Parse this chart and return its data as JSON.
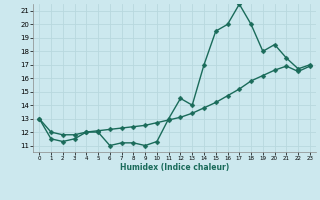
{
  "xlabel": "Humidex (Indice chaleur)",
  "background_color": "#cce8ee",
  "grid_color": "#b8d8de",
  "line_color": "#1a6b5a",
  "line1_x": [
    0,
    1,
    2,
    3,
    4,
    5,
    6,
    7,
    8,
    9,
    10,
    11,
    12,
    13,
    14,
    15,
    16,
    17,
    18,
    19,
    20,
    21,
    22,
    23
  ],
  "line1_y": [
    13,
    11.5,
    11.3,
    11.5,
    12,
    12,
    11,
    11.2,
    11.2,
    11,
    11.3,
    13,
    14.5,
    14,
    17,
    19.5,
    20,
    21.5,
    20,
    18,
    18.5,
    17.5,
    16.7,
    17
  ],
  "line2_x": [
    0,
    1,
    2,
    3,
    4,
    5,
    6,
    7,
    8,
    9,
    10,
    11,
    12,
    13,
    14,
    15,
    16,
    17,
    18,
    19,
    20,
    21,
    22,
    23
  ],
  "line2_y": [
    13,
    12,
    11.8,
    11.8,
    12,
    12.1,
    12.2,
    12.3,
    12.4,
    12.5,
    12.7,
    12.9,
    13.1,
    13.4,
    13.8,
    14.2,
    14.7,
    15.2,
    15.8,
    16.2,
    16.6,
    16.9,
    16.5,
    16.9
  ],
  "ylim": [
    10.5,
    21.5
  ],
  "xlim": [
    -0.5,
    23.5
  ],
  "yticks": [
    11,
    12,
    13,
    14,
    15,
    16,
    17,
    18,
    19,
    20,
    21
  ],
  "xticks": [
    0,
    1,
    2,
    3,
    4,
    5,
    6,
    7,
    8,
    9,
    10,
    11,
    12,
    13,
    14,
    15,
    16,
    17,
    18,
    19,
    20,
    21,
    22,
    23
  ],
  "marker": "D",
  "marker_size": 2.5,
  "line_width": 1.0
}
